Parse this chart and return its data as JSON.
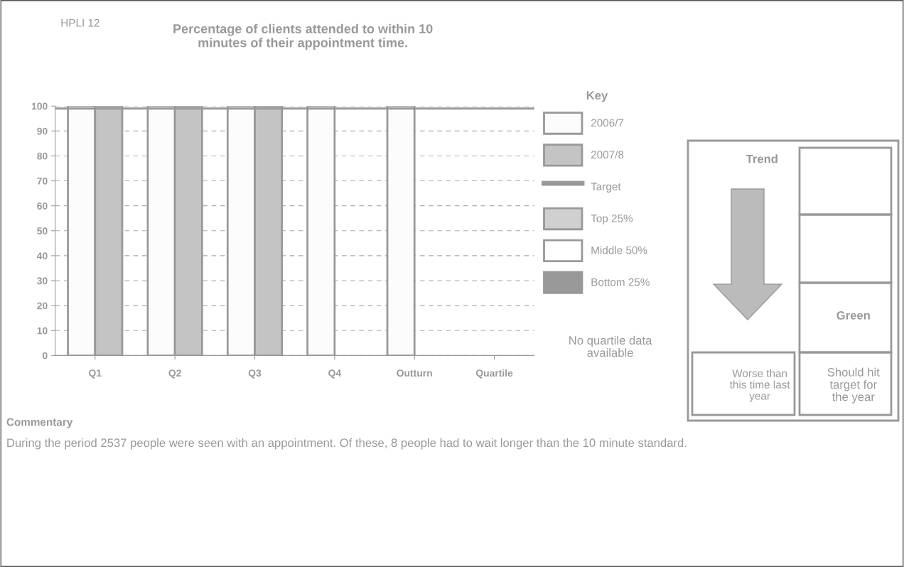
{
  "chart_data": {
    "type": "bar",
    "title": "Percentage of clients attended to within 10\nminutes of their appointment time.",
    "categories": [
      "Q1",
      "Q2",
      "Q3",
      "Q4",
      "Outturn",
      "Quartile"
    ],
    "series": [
      {
        "name": "2006/7",
        "color": "#fcfcfc",
        "values": [
          100,
          100,
          100,
          100,
          100,
          null
        ]
      },
      {
        "name": "2007/8",
        "color": "#c4c4c4",
        "values": [
          100,
          100,
          100,
          null,
          null,
          null
        ]
      },
      {
        "name": "Top 25%",
        "color": "#d0d0d0",
        "values": [
          null,
          null,
          null,
          null,
          null,
          null
        ]
      },
      {
        "name": "Middle 50%",
        "color": "#ffffff",
        "values": [
          null,
          null,
          null,
          null,
          null,
          null
        ]
      },
      {
        "name": "Bottom 25%",
        "color": "#999999",
        "values": [
          null,
          null,
          null,
          null,
          null,
          null
        ]
      }
    ],
    "ref_lines": [
      {
        "axis": "y",
        "value": 99,
        "label": "Target",
        "color": "#999999"
      }
    ],
    "ylim": [
      0,
      100
    ],
    "yticks": [
      0,
      10,
      20,
      30,
      40,
      50,
      60,
      70,
      80,
      90,
      100
    ],
    "grid": "y",
    "legend": "right",
    "legend_title": "Key",
    "annotations": [
      "HPLI 12",
      "No quartile data\navailable",
      "Trend",
      "Green",
      "Worse than\nthis time last\nyear",
      "Should hit\ntarget for\nthe year",
      "Commentary",
      "During the period 2537 people were seen with an appointment. Of these, 8 people had to wait longer than the 10 minute standard."
    ]
  }
}
